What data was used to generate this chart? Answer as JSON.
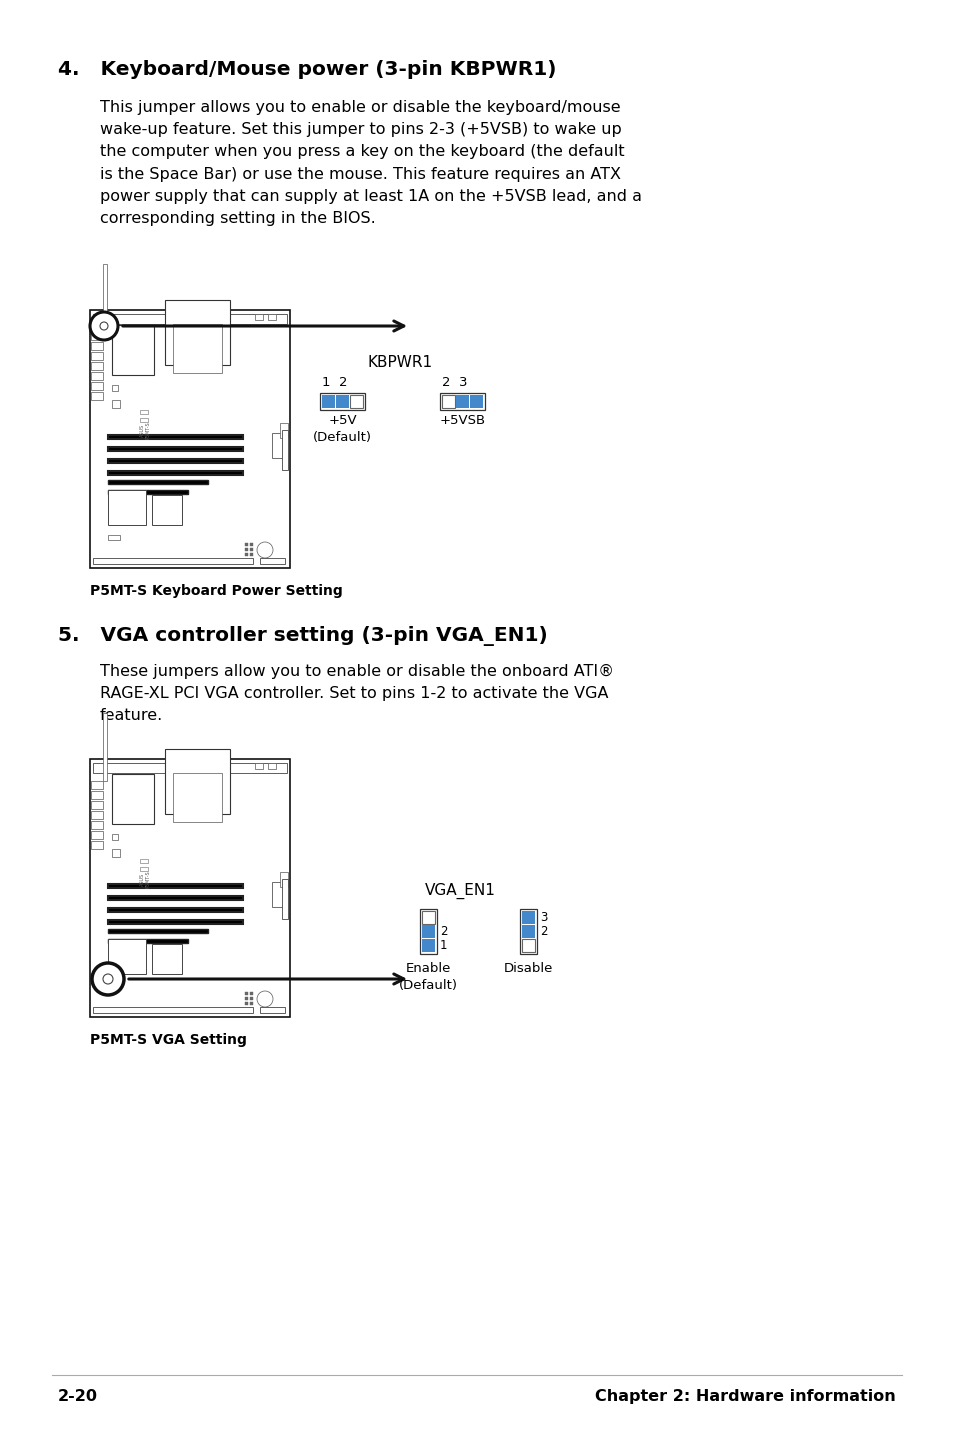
{
  "bg_color": "#ffffff",
  "text_color": "#000000",
  "section4_heading": "4.   Keyboard/Mouse power (3-pin KBPWR1)",
  "section4_body": "This jumper allows you to enable or disable the keyboard/mouse\nwake-up feature. Set this jumper to pins 2-3 (+5VSB) to wake up\nthe computer when you press a key on the keyboard (the default\nis the Space Bar) or use the mouse. This feature requires an ATX\npower supply that can supply at least 1A on the +5VSB lead, and a\ncorresponding setting in the BIOS.",
  "kbpwr1_label": "KBPWR1",
  "kbpwr1_pin1_label": "1  2",
  "kbpwr1_pin2_label": "2  3",
  "kbpwr1_default_label": "+5V\n(Default)",
  "kbpwr1_alt_label": "+5VSB",
  "caption1": "P5MT-S Keyboard Power Setting",
  "section5_heading": "5.   VGA controller setting (3-pin VGA_EN1)",
  "section5_body": "These jumpers allow you to enable or disable the onboard ATI®\nRAGE-XL PCI VGA controller. Set to pins 1-2 to activate the VGA\nfeature.",
  "vga_en1_label": "VGA_EN1",
  "vga_enable_pin2": "2",
  "vga_enable_pin1": "1",
  "vga_disable_pin3": "3",
  "vga_disable_pin2": "2",
  "vga_enable_label": "Enable\n(Default)",
  "vga_disable_label": "Disable",
  "caption2": "P5MT-S VGA Setting",
  "footer_left": "2-20",
  "footer_right": "Chapter 2: Hardware information",
  "jumper_blue": "#4488cc",
  "jumper_outline": "#333333"
}
